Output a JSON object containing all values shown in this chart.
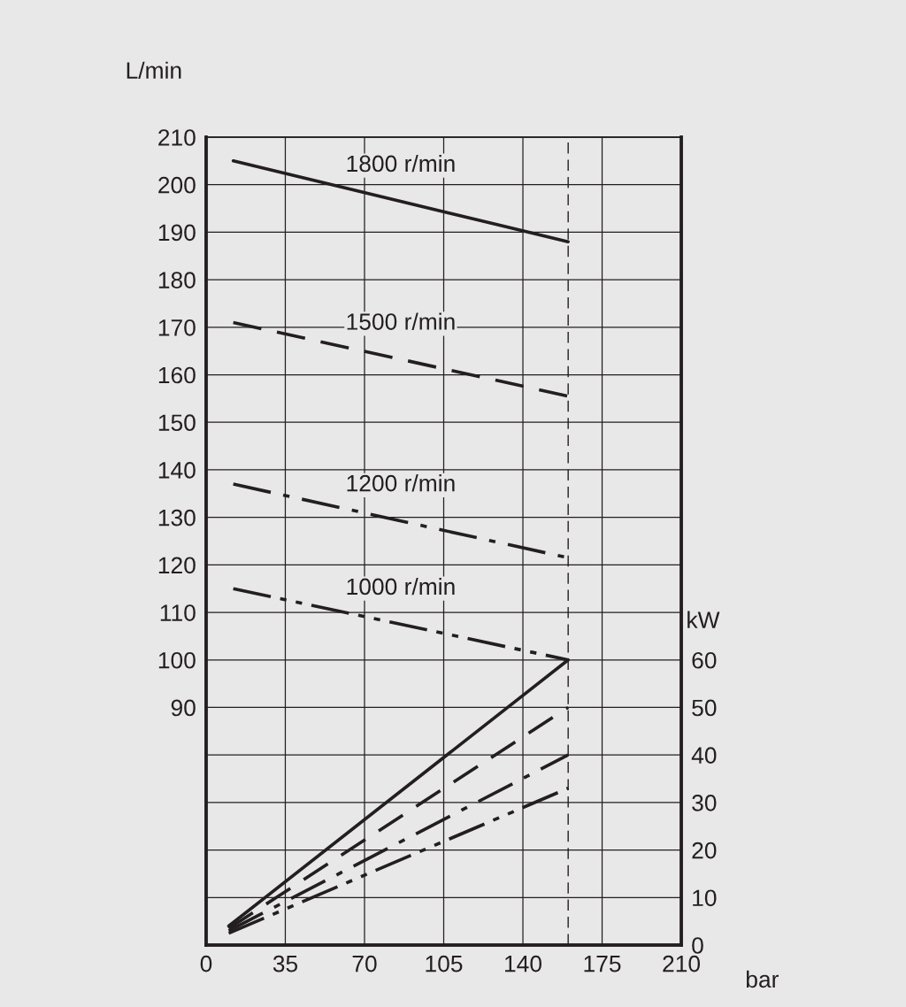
{
  "chart_data": {
    "type": "line",
    "xlabel": "bar",
    "ylabel": "L/min",
    "y2label": "kW",
    "xlim": [
      0,
      210
    ],
    "xticks": [
      0,
      35,
      70,
      105,
      140,
      175,
      210
    ],
    "ylim": [
      40,
      210
    ],
    "yticks": [
      {
        "value": 50,
        "label": null
      },
      {
        "value": 60,
        "label": null
      },
      {
        "value": 70,
        "label": null
      },
      {
        "value": 80,
        "label": null
      },
      90,
      100,
      110,
      120,
      130,
      140,
      150,
      160,
      170,
      180,
      190,
      200,
      210
    ],
    "y2lim": [
      0,
      170
    ],
    "y2ticks": [
      0,
      10,
      20,
      30,
      40,
      50,
      60
    ],
    "grid": true,
    "series": [
      {
        "name": "1800 r/min",
        "color": "#231f20",
        "line_style": "solid",
        "x": [
          12,
          160
        ],
        "values": [
          205,
          188
        ]
      },
      {
        "name": "1500 r/min",
        "color": "#231f20",
        "line_style": "dashed",
        "x": [
          12,
          160
        ],
        "values": [
          171,
          155.5
        ]
      },
      {
        "name": "1200 r/min",
        "color": "#231f20",
        "line_style": "dashdot",
        "x": [
          12,
          160
        ],
        "values": [
          137,
          121.5
        ]
      },
      {
        "name": "1000 r/min",
        "color": "#231f20",
        "line_style": "dashdotdot",
        "x": [
          12,
          160
        ],
        "values": [
          115,
          100
        ]
      },
      {
        "color": "#231f20",
        "line_style": "solid",
        "axis": "y2",
        "x": [
          10,
          160
        ],
        "values": [
          4,
          60
        ]
      },
      {
        "color": "#231f20",
        "line_style": "dashed",
        "axis": "y2",
        "x": [
          10,
          160
        ],
        "values": [
          3.5,
          50
        ]
      },
      {
        "color": "#231f20",
        "line_style": "dashdot",
        "axis": "y2",
        "x": [
          10,
          160
        ],
        "values": [
          3,
          40
        ]
      },
      {
        "color": "#231f20",
        "line_style": "dashdotdot",
        "axis": "y2",
        "x": [
          10,
          160
        ],
        "values": [
          2.5,
          33
        ]
      }
    ],
    "ref_lines": [
      {
        "axis": "x",
        "value": 160,
        "line_style": "dashed",
        "color": "#231f20"
      }
    ]
  }
}
